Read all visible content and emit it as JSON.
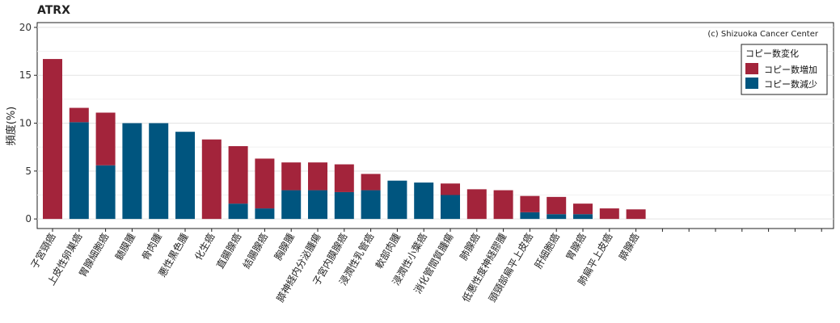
{
  "chart_data": {
    "type": "bar",
    "stacked": true,
    "title": "ATRX",
    "ylabel": "頻度(%)",
    "xlabel": "",
    "ylim": [
      -1,
      20.5
    ],
    "yticks": [
      0,
      5,
      10,
      15,
      20
    ],
    "grid": true,
    "legend_position": "top-right",
    "annotation": "(c) Shizuoka Cancer Center",
    "legend_title": "コピー数変化",
    "colors": {
      "gain": "#a3243b",
      "loss": "#00557f"
    },
    "categories": [
      "子宮頸癌",
      "上皮性卵巣癌",
      "胃腺細胞癌",
      "髄膜腫",
      "骨肉腫",
      "悪性黒色腫",
      "化生癌",
      "直腸腺癌",
      "結腸腺癌",
      "胸腺腫",
      "膵神経内分泌腫瘍",
      "子宮内膜腺癌",
      "浸潤性乳管癌",
      "軟部肉腫",
      "浸潤性小葉癌",
      "消化管間質腫瘍",
      "肺腺癌",
      "低悪性度神経膠腫",
      "頭頸部扁平上皮癌",
      "肝細胞癌",
      "胃腺癌",
      "肺扁平上皮癌",
      "膵腺癌",
      "",
      "",
      "",
      "",
      "",
      "",
      ""
    ],
    "series": [
      {
        "name": "コピー数減少",
        "key": "loss",
        "values": [
          0,
          10.1,
          5.6,
          10.0,
          10.0,
          9.1,
          0,
          1.6,
          1.1,
          3.0,
          3.0,
          2.8,
          3.0,
          4.0,
          3.8,
          2.5,
          0,
          0,
          0.7,
          0.5,
          0.5,
          0,
          0,
          0,
          0,
          0,
          0,
          0,
          0,
          0
        ]
      },
      {
        "name": "コピー数増加",
        "key": "gain",
        "values": [
          16.7,
          1.5,
          5.5,
          0,
          0,
          0,
          8.3,
          6.0,
          5.2,
          2.9,
          2.9,
          2.9,
          1.7,
          0,
          0,
          1.2,
          3.1,
          3.0,
          1.7,
          1.8,
          1.1,
          1.1,
          1.0,
          0,
          0,
          0,
          0,
          0,
          0,
          0
        ]
      }
    ]
  }
}
